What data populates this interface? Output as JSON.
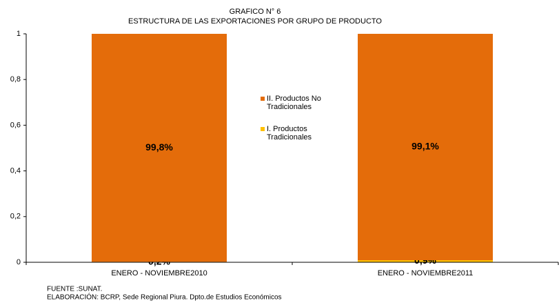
{
  "chart_data": {
    "type": "stacked_bar",
    "title": "GRAFICO N° 6",
    "subtitle": "ESTRUCTURA DE LAS EXPORTACIONES POR GRUPO DE PRODUCTO",
    "categories": [
      "ENERO - NOVIEMBRE2010",
      "ENERO - NOVIEMBRE2011"
    ],
    "series": [
      {
        "name": "I. Productos Tradicionales",
        "color": "#ffc000",
        "values": [
          0.002,
          0.009
        ],
        "value_labels": [
          "0,2%",
          "0,9%"
        ]
      },
      {
        "name": "II. Productos No Tradicionales",
        "color": "#e46c0a",
        "values": [
          0.998,
          0.991
        ],
        "value_labels": [
          "99,8%",
          "99,1%"
        ]
      }
    ],
    "ylim": [
      0,
      1
    ],
    "yticks": [
      0,
      {
        "value": 0.2,
        "label": "0,2"
      },
      {
        "value": 0.4,
        "label": "0,4"
      },
      {
        "value": 0.6,
        "label": "0,6"
      },
      {
        "value": 0.8,
        "label": "0,8"
      },
      1
    ],
    "source": "FUENTE :SUNAT.",
    "credit": "ELABORACIÓN: BCRP, Sede Regional Piura. Dpto.de Estudios Económicos"
  }
}
